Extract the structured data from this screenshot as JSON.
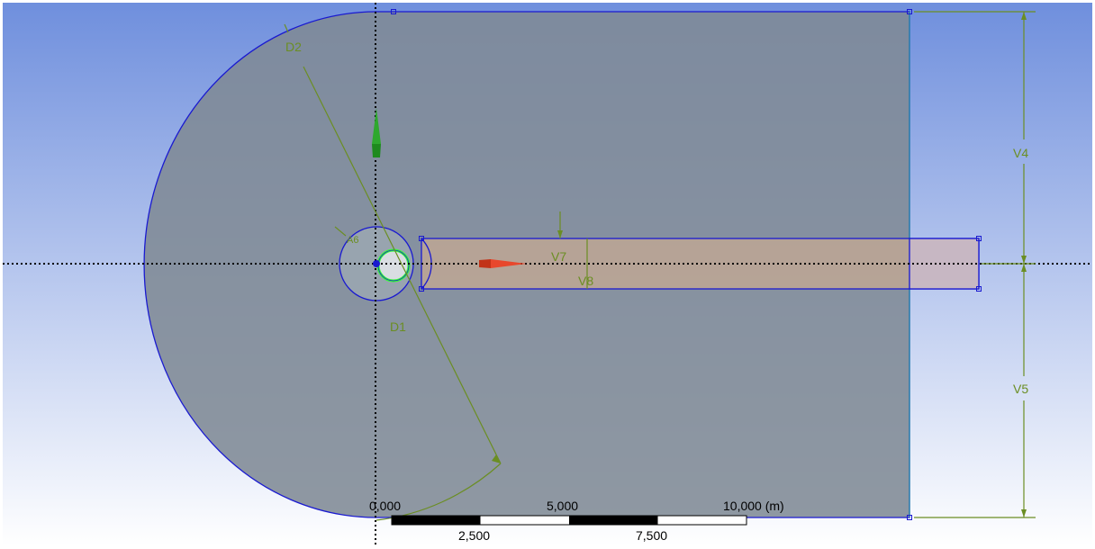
{
  "viewport": {
    "background_top": "#6f8fdd",
    "background_bottom": "#ffffff",
    "sketch_line_color": "#1a1ad0",
    "dimension_color": "#6b8e23",
    "selection_color": "#33ff33",
    "x_axis_arrow_color": "#e8472c",
    "y_axis_arrow_color": "#2ea82e"
  },
  "dimensions": {
    "d2": "D2",
    "d1": "D1",
    "a6": "A6",
    "v4": "V4",
    "v5": "V5",
    "v7": "V7",
    "v8": "V8"
  },
  "scale_bar": {
    "top_labels": [
      "0,000",
      "5,000",
      "10,000 (m)"
    ],
    "bottom_labels": [
      "2,500",
      "7,500"
    ]
  }
}
